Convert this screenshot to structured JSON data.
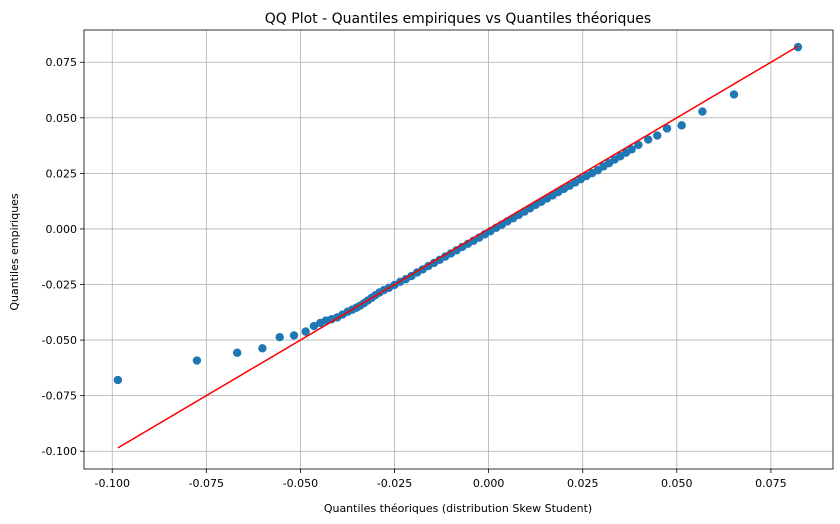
{
  "chart_data": {
    "type": "scatter",
    "title": "QQ Plot - Quantiles empiriques vs Quantiles théoriques",
    "xlabel": "Quantiles théoriques (distribution Skew Student)",
    "ylabel": "Quantiles empiriques",
    "xlim": [
      -0.1075,
      0.0915
    ],
    "ylim": [
      -0.108,
      0.0895
    ],
    "xticks": [
      "-0.100",
      "-0.075",
      "-0.050",
      "-0.025",
      "0.000",
      "0.025",
      "0.050",
      "0.075"
    ],
    "yticks": [
      "-0.100",
      "-0.075",
      "-0.050",
      "-0.025",
      "0.000",
      "0.025",
      "0.050",
      "0.075"
    ],
    "grid": true,
    "series": [
      {
        "kind": "points",
        "color": "#1f77b4",
        "x": [
          -0.0985,
          -0.0775,
          -0.0668,
          -0.0601,
          -0.0555,
          -0.0517,
          -0.0486,
          -0.0464,
          -0.0447,
          -0.0432,
          -0.0417,
          -0.0402,
          -0.0388,
          -0.0374,
          -0.0362,
          -0.0351,
          -0.0341,
          -0.0331,
          -0.0321,
          -0.0311,
          -0.0301,
          -0.029,
          -0.0278,
          -0.0265,
          -0.025,
          -0.0235,
          -0.022,
          -0.0205,
          -0.019,
          -0.0175,
          -0.016,
          -0.0145,
          -0.013,
          -0.0115,
          -0.01,
          -0.0085,
          -0.007,
          -0.0055,
          -0.004,
          -0.0025,
          -0.001,
          0.0005,
          0.002,
          0.0035,
          0.005,
          0.0065,
          0.008,
          0.0095,
          0.011,
          0.0125,
          0.014,
          0.0155,
          0.017,
          0.0185,
          0.02,
          0.0215,
          0.023,
          0.0245,
          0.026,
          0.0275,
          0.029,
          0.0305,
          0.032,
          0.0335,
          0.035,
          0.0365,
          0.038,
          0.0398,
          0.0424,
          0.0448,
          0.0474,
          0.0513,
          0.0568,
          0.0652,
          0.0822
        ],
        "y": [
          -0.068,
          -0.0592,
          -0.0557,
          -0.0537,
          -0.0487,
          -0.0479,
          -0.0462,
          -0.0437,
          -0.0423,
          -0.0412,
          -0.0406,
          -0.0398,
          -0.0385,
          -0.0372,
          -0.0363,
          -0.0354,
          -0.0345,
          -0.0334,
          -0.0322,
          -0.031,
          -0.0298,
          -0.0286,
          -0.0275,
          -0.0265,
          -0.0252,
          -0.0238,
          -0.0226,
          -0.0212,
          -0.0196,
          -0.0182,
          -0.0167,
          -0.0153,
          -0.0139,
          -0.0124,
          -0.011,
          -0.0096,
          -0.0081,
          -0.0067,
          -0.0053,
          -0.0039,
          -0.0024,
          -0.001,
          0.0005,
          0.0019,
          0.0034,
          0.0048,
          0.0063,
          0.0078,
          0.0093,
          0.0108,
          0.0122,
          0.0137,
          0.0151,
          0.0166,
          0.018,
          0.0194,
          0.0209,
          0.0224,
          0.0238,
          0.0251,
          0.0264,
          0.0281,
          0.0296,
          0.0312,
          0.0327,
          0.0343,
          0.0358,
          0.0378,
          0.0402,
          0.042,
          0.0452,
          0.0466,
          0.0528,
          0.0605,
          0.0818
        ]
      },
      {
        "kind": "line",
        "color": "#ff0000",
        "x": [
          -0.0985,
          0.0822
        ],
        "y": [
          -0.0985,
          0.0822
        ]
      }
    ]
  }
}
